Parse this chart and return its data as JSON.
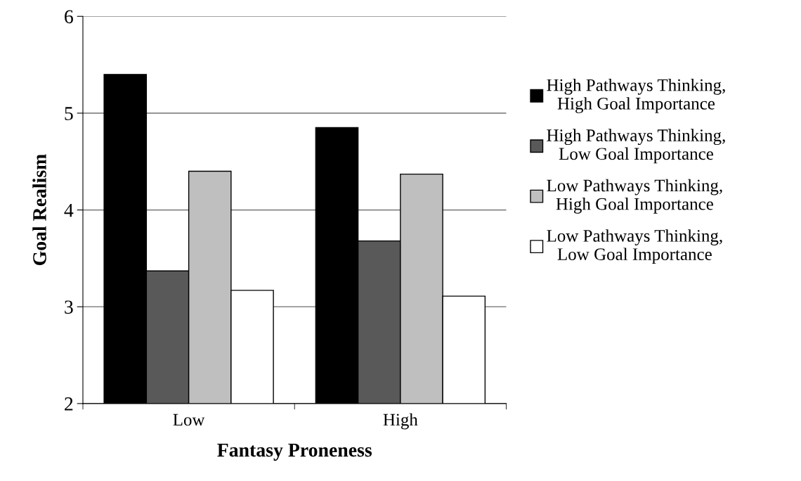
{
  "chart_data": {
    "type": "bar",
    "xlabel": "Fantasy Proneness",
    "ylabel": "Goal Realism",
    "categories": [
      "Low",
      "High"
    ],
    "series": [
      {
        "name": "High Pathways Thinking,\nHigh Goal Importance",
        "color": "#000000",
        "values": [
          5.4,
          4.85
        ]
      },
      {
        "name": "High Pathways Thinking,\nLow Goal Importance",
        "color": "#595959",
        "values": [
          3.37,
          3.68
        ]
      },
      {
        "name": "Low Pathways Thinking,\nHigh Goal Importance",
        "color": "#bfbfbf",
        "values": [
          4.4,
          4.37
        ]
      },
      {
        "name": "Low Pathways Thinking,\nLow Goal Importance",
        "color": "#ffffff",
        "values": [
          3.17,
          3.11
        ]
      }
    ],
    "ylim": [
      2,
      6
    ],
    "yticks": [
      2,
      3,
      4,
      5,
      6
    ],
    "grid": "y",
    "legend": "right"
  }
}
